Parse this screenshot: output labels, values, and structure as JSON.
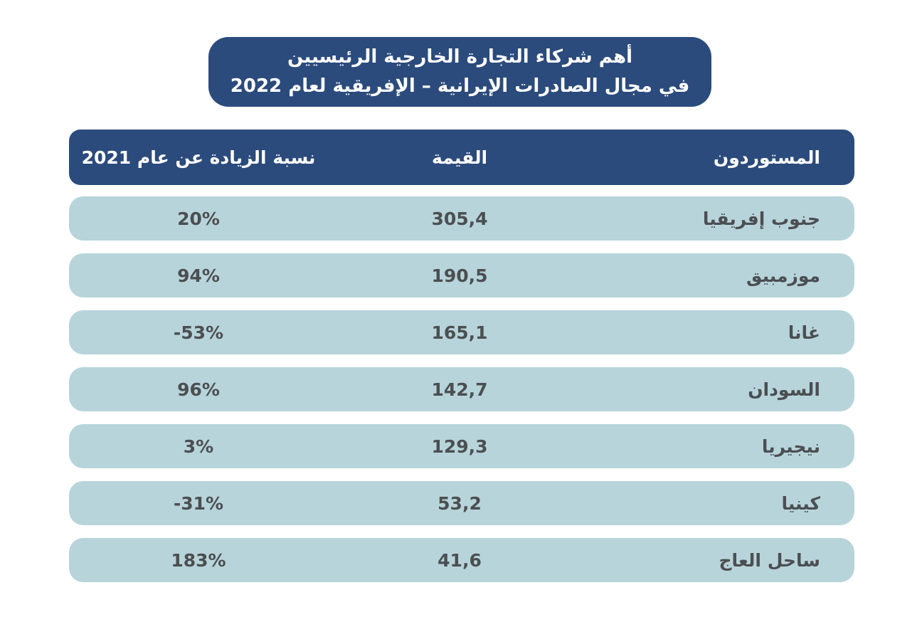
{
  "title": {
    "line1": "أهم شركاء التجارة الخارجية الرئيسيين",
    "line2": "في مجال الصادرات الإيرانية – الإفريقية لعام 2022"
  },
  "table": {
    "headers": {
      "importers": "المستوردون",
      "value": "القيمة",
      "increase": "نسبة الزيادة عن عام 2021"
    },
    "rows": [
      {
        "importer": "جنوب إفريقيا",
        "value": "305,4",
        "increase": "20%"
      },
      {
        "importer": "موزمبيق",
        "value": "190,5",
        "increase": "94%"
      },
      {
        "importer": "غانا",
        "value": "165,1",
        "increase": "-53%"
      },
      {
        "importer": "السودان",
        "value": "142,7",
        "increase": "96%"
      },
      {
        "importer": "نيجيريا",
        "value": "129,3",
        "increase": "3%"
      },
      {
        "importer": "كينيا",
        "value": "53,2",
        "increase": "-31%"
      },
      {
        "importer": "ساحل العاج",
        "value": "41,6",
        "increase": "183%"
      }
    ]
  },
  "chart_data": {
    "type": "table",
    "title": "أهم شركاء التجارة الخارجية الرئيسيين في مجال الصادرات الإيرانية – الإفريقية لعام 2022",
    "columns": [
      "المستوردون",
      "القيمة",
      "نسبة الزيادة عن عام 2021"
    ],
    "rows": [
      [
        "جنوب إفريقيا",
        "305,4",
        "20%"
      ],
      [
        "موزمبيق",
        "190,5",
        "94%"
      ],
      [
        "غانا",
        "165,1",
        "-53%"
      ],
      [
        "السودان",
        "142,7",
        "96%"
      ],
      [
        "نيجيريا",
        "129,3",
        "3%"
      ],
      [
        "كينيا",
        "53,2",
        "-31%"
      ],
      [
        "ساحل العاج",
        "41,6",
        "183%"
      ]
    ]
  },
  "colors": {
    "primary": "#2B4B7C",
    "row_bg": "#B7D4DA",
    "row_text": "#4B4F52",
    "header_text": "#FFFFFF",
    "background": "#FFFFFF"
  }
}
